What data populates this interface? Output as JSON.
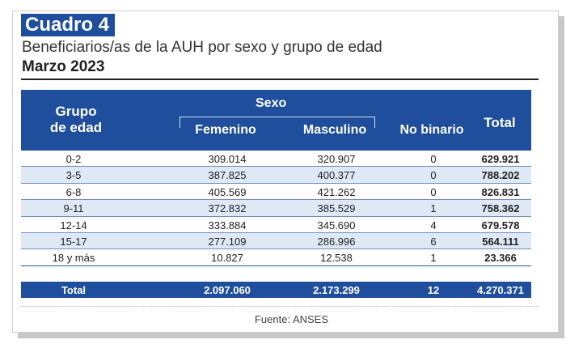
{
  "badge": "Cuadro 4",
  "subtitle": "Beneficiarios/as de la AUH por sexo y grupo de edad",
  "date": "Marzo 2023",
  "header": {
    "grupo_line1": "Grupo",
    "grupo_line2": "de edad",
    "sexo": "Sexo",
    "femenino": "Femenino",
    "masculino": "Masculino",
    "no_binario": "No binario",
    "total": "Total"
  },
  "rows": [
    {
      "grupo": "0-2",
      "femenino": "309.014",
      "masculino": "320.907",
      "no_binario": "0",
      "total": "629.921"
    },
    {
      "grupo": "3-5",
      "femenino": "387.825",
      "masculino": "400.377",
      "no_binario": "0",
      "total": "788.202"
    },
    {
      "grupo": "6-8",
      "femenino": "405.569",
      "masculino": "421.262",
      "no_binario": "0",
      "total": "826.831"
    },
    {
      "grupo": "9-11",
      "femenino": "372.832",
      "masculino": "385.529",
      "no_binario": "1",
      "total": "758.362"
    },
    {
      "grupo": "12-14",
      "femenino": "333.884",
      "masculino": "345.690",
      "no_binario": "4",
      "total": "679.578"
    },
    {
      "grupo": "15-17",
      "femenino": "277.109",
      "masculino": "286.996",
      "no_binario": "6",
      "total": "564.111"
    },
    {
      "grupo": "18 y más",
      "femenino": "10.827",
      "masculino": "12.538",
      "no_binario": "1",
      "total": "23.366"
    }
  ],
  "totals": {
    "label": "Total",
    "femenino": "2.097.060",
    "masculino": "2.173.299",
    "no_binario": "12",
    "total": "4.270.371"
  },
  "source": "Fuente: ANSES",
  "colors": {
    "header_blue": "#1f4e9c",
    "stripe": "#dfe8f5"
  }
}
